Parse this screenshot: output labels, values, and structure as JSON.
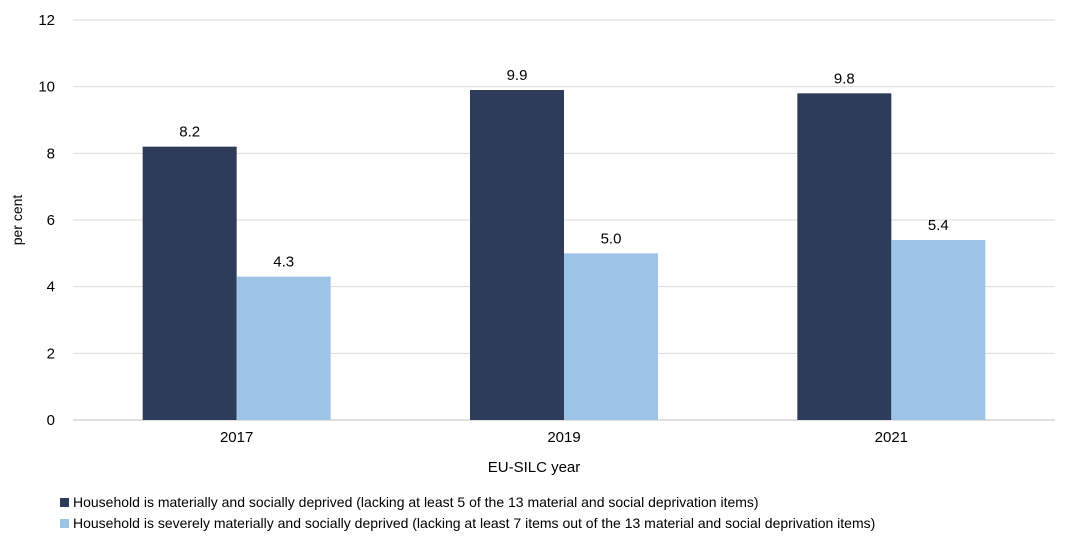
{
  "chart_data": {
    "type": "bar",
    "title": "",
    "xlabel": "EU-SILC year",
    "ylabel": "per cent",
    "categories": [
      "2017",
      "2019",
      "2021"
    ],
    "ylim": [
      0,
      12
    ],
    "yticks": [
      0,
      2,
      4,
      6,
      8,
      10,
      12
    ],
    "grid": true,
    "legend_position": "bottom-left",
    "series": [
      {
        "name": "Household is materially and socially deprived (lacking at least 5 of the 13 material and social deprivation items)",
        "values": [
          8.2,
          9.9,
          9.8
        ],
        "labels": [
          "8.2",
          "9.9",
          "9.8"
        ],
        "color": "#2e3b5a"
      },
      {
        "name": "Household is severely materially and socially deprived (lacking at least 7 items out of the 13 material and social deprivation items)",
        "values": [
          4.3,
          5.0,
          5.4
        ],
        "labels": [
          "4.3",
          "5.0",
          "5.4"
        ],
        "color": "#9dc3e6"
      }
    ]
  }
}
